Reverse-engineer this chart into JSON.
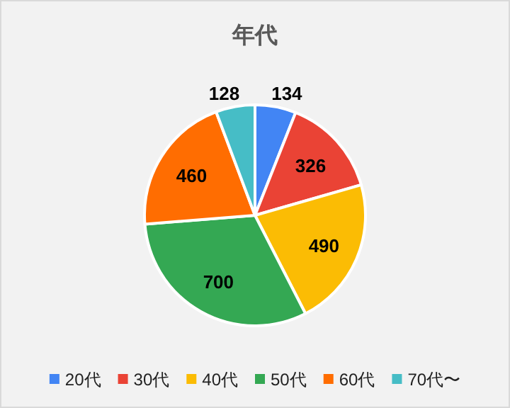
{
  "chart_data": {
    "type": "pie",
    "title": "年代",
    "categories": [
      "20代",
      "30代",
      "40代",
      "50代",
      "60代",
      "70代〜"
    ],
    "values": [
      134,
      326,
      490,
      700,
      460,
      128
    ],
    "colors": [
      "#4285f4",
      "#ea4335",
      "#fbbc04",
      "#34a853",
      "#ff6d01",
      "#46bdc6"
    ],
    "data_labels": true,
    "legend": "bottom"
  }
}
